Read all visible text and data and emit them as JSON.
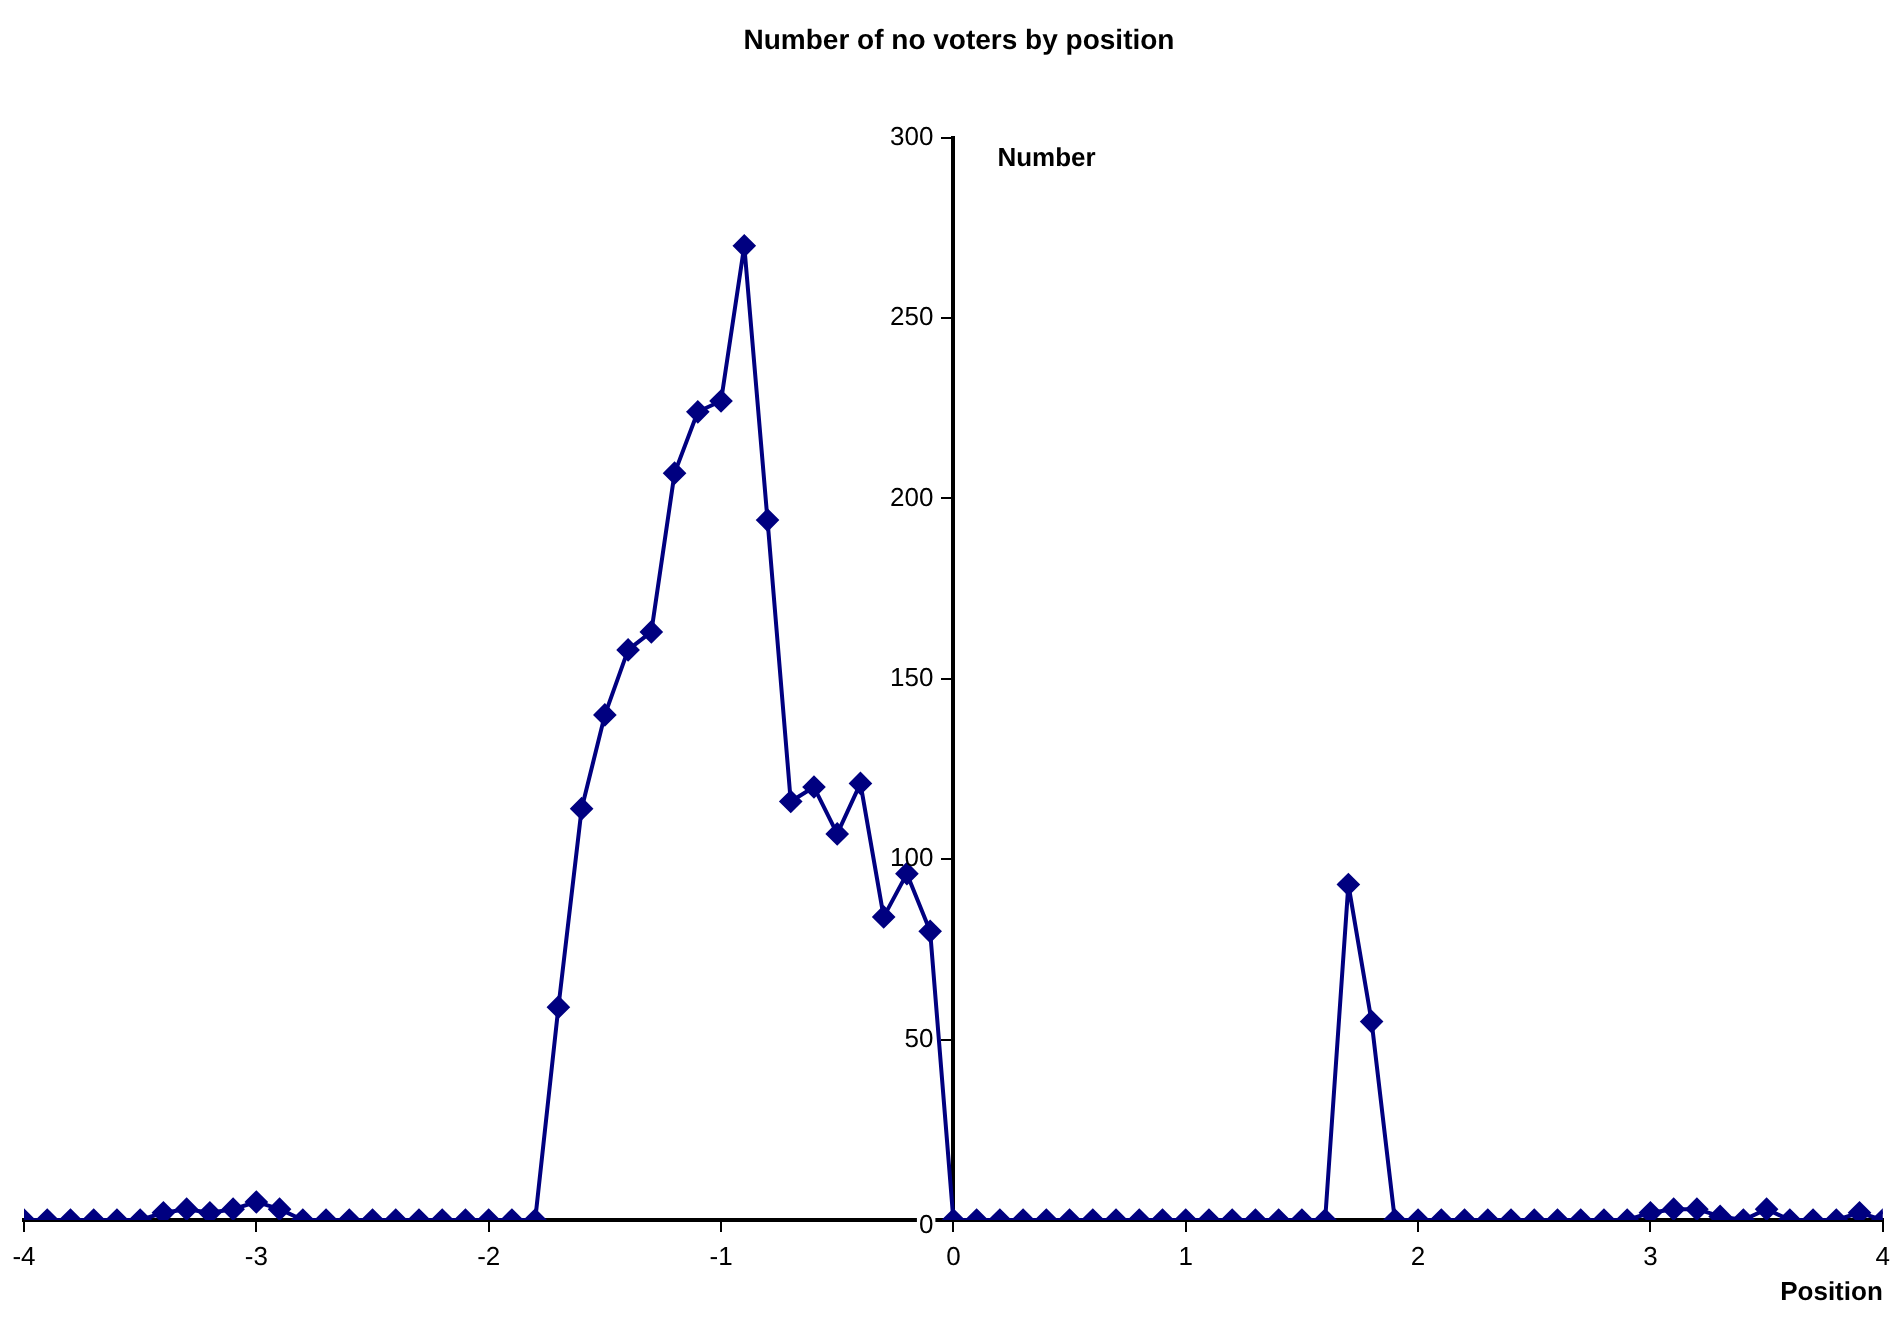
{
  "chart_data": {
    "type": "line",
    "title": "Number of no voters by position",
    "xlabel": "Position",
    "ylabel": "Number",
    "x": [
      -4,
      -3.9,
      -3.8,
      -3.7,
      -3.6,
      -3.5,
      -3.4,
      -3.3,
      -3.2,
      -3.1,
      -3,
      -2.9,
      -2.8,
      -2.7,
      -2.6,
      -2.5,
      -2.4,
      -2.3,
      -2.2,
      -2.1,
      -2,
      -1.9,
      -1.8,
      -1.7,
      -1.6,
      -1.5,
      -1.4,
      -1.3,
      -1.2,
      -1.1,
      -1,
      -0.9,
      -0.8,
      -0.7,
      -0.6,
      -0.5,
      -0.4,
      -0.3,
      -0.2,
      -0.1,
      0,
      0.1,
      0.2,
      0.3,
      0.4,
      0.5,
      0.6,
      0.7,
      0.8,
      0.9,
      1,
      1.1,
      1.2,
      1.3,
      1.4,
      1.5,
      1.6,
      1.7,
      1.8,
      1.9,
      2,
      2.1,
      2.2,
      2.3,
      2.4,
      2.5,
      2.6,
      2.7,
      2.8,
      2.9,
      3,
      3.1,
      3.2,
      3.3,
      3.4,
      3.5,
      3.6,
      3.7,
      3.8,
      3.9,
      4
    ],
    "series": [
      {
        "color": "#000080",
        "values": [
          0,
          0,
          0,
          0,
          0,
          0,
          2,
          3,
          2,
          3,
          5,
          3,
          0,
          0,
          0,
          0,
          0,
          0,
          0,
          0,
          0,
          0,
          0,
          59,
          114,
          140,
          158,
          163,
          207,
          224,
          227,
          270,
          194,
          116,
          120,
          107,
          121,
          84,
          96,
          80,
          0,
          0,
          0,
          0,
          0,
          0,
          0,
          0,
          0,
          0,
          0,
          0,
          0,
          0,
          0,
          0,
          0,
          93,
          55,
          0,
          0,
          0,
          0,
          0,
          0,
          0,
          0,
          0,
          0,
          0,
          2,
          3,
          3,
          1,
          0,
          3,
          0,
          0,
          0,
          2,
          0
        ]
      }
    ],
    "xlim": [
      -4,
      4
    ],
    "xticks": [
      -4,
      -3,
      -2,
      -1,
      0,
      1,
      2,
      3,
      4
    ],
    "ylim": [
      0,
      300
    ],
    "yticks": [
      0,
      50,
      100,
      150,
      200,
      250,
      300
    ],
    "grid": false,
    "legend": false,
    "marker": "diamond",
    "line_style": "solid"
  }
}
